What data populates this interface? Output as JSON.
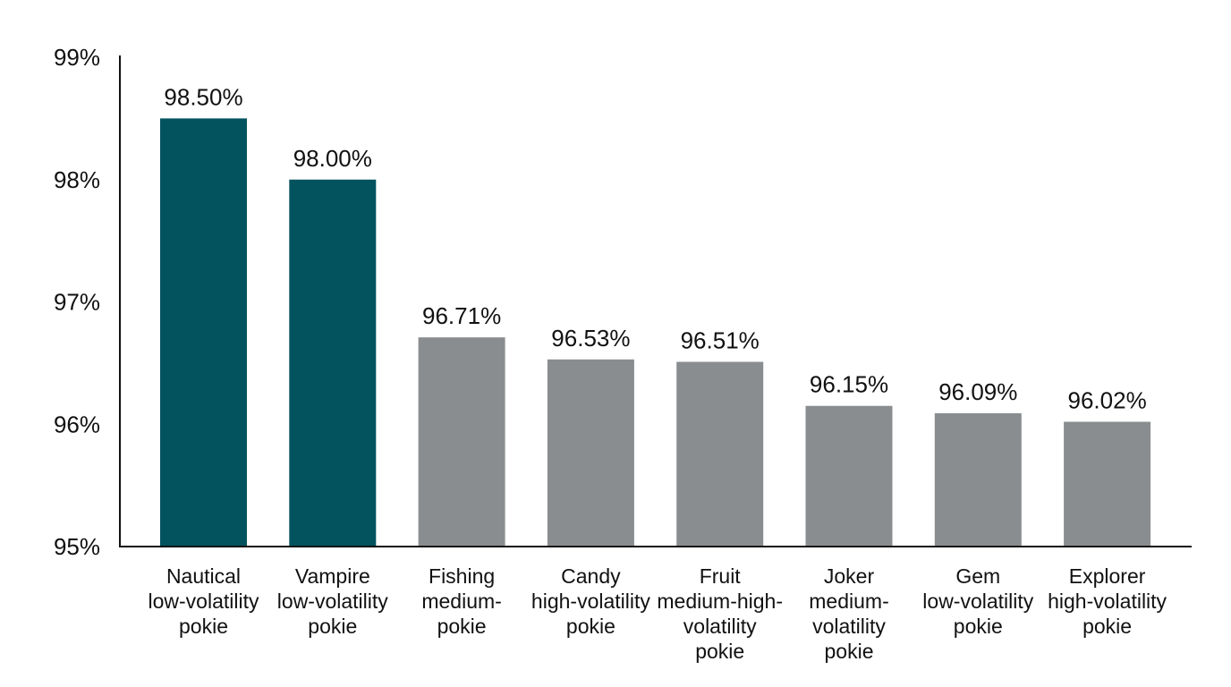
{
  "chart_data": {
    "type": "bar",
    "title": "",
    "xlabel": "",
    "ylabel": "",
    "ylim": [
      95,
      99
    ],
    "yticks": [
      "95%",
      "96%",
      "97%",
      "98%",
      "99%"
    ],
    "ytick_values": [
      95,
      96,
      97,
      98,
      99
    ],
    "grid": false,
    "categories": [
      [
        "Nautical",
        "low-volatility",
        "pokie"
      ],
      [
        "Vampire",
        "low-volatility",
        "pokie"
      ],
      [
        "Fishing",
        "medium-",
        "pokie"
      ],
      [
        "Candy",
        "high-volatility",
        "pokie"
      ],
      [
        "Fruit",
        "medium-high-",
        "volatility",
        "pokie"
      ],
      [
        "Joker",
        "medium-",
        "volatility",
        "pokie"
      ],
      [
        "Gem",
        "low-volatility",
        "pokie"
      ],
      [
        "Explorer",
        "high-volatility",
        "pokie"
      ]
    ],
    "values": [
      98.5,
      98.0,
      96.71,
      96.53,
      96.51,
      96.15,
      96.09,
      96.02
    ],
    "value_labels": [
      "98.50%",
      "98.00%",
      "96.71%",
      "96.53%",
      "96.51%",
      "96.15%",
      "96.09%",
      "96.02%"
    ],
    "highlighted": [
      true,
      true,
      false,
      false,
      false,
      false,
      false,
      false
    ],
    "colors": {
      "highlight": "#03535f",
      "default": "#8a8d8f",
      "axis": "#111111",
      "text": "#111111"
    }
  }
}
